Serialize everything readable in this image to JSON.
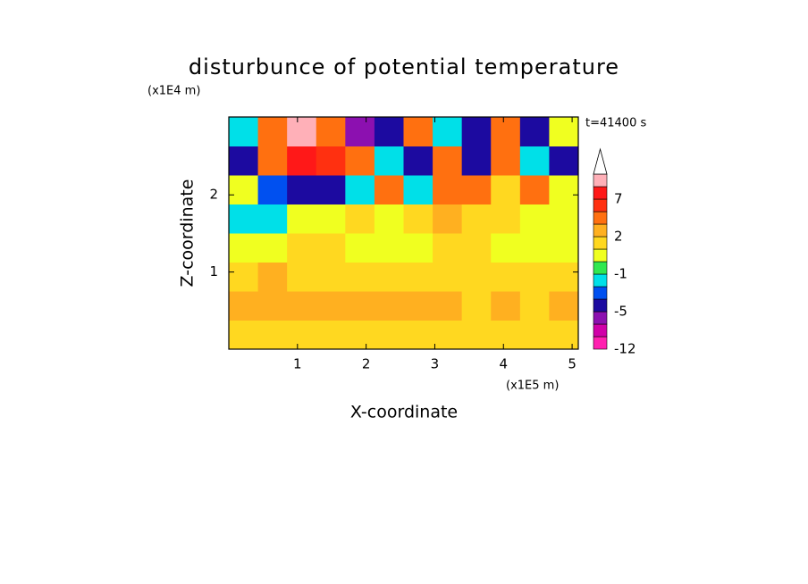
{
  "chart_data": {
    "type": "contour",
    "title": "disturbunce of potential temperature",
    "time_label": "t=41400 s",
    "x_label": "X-coordinate",
    "y_label": "Z-coordinate",
    "x_unit": "(x1E5 m)",
    "y_unit": "(x1E4 m)",
    "xlim": [
      0,
      5.09
    ],
    "ylim": [
      0,
      3.01
    ],
    "xticks": [
      1,
      2,
      3,
      4,
      5
    ],
    "yticks": [
      1,
      2
    ],
    "levels": [
      -12,
      -9,
      -7,
      -5,
      -3,
      -2,
      -1,
      0,
      1,
      2,
      3,
      5,
      7,
      9,
      11
    ],
    "colors": [
      "#ff20b0",
      "#d000a8",
      "#8c10b0",
      "#1c0aa0",
      "#0050f0",
      "#00e0e8",
      "#30e850",
      "#f0ff20",
      "#ffd820",
      "#ffb020",
      "#ff7010",
      "#ff3010",
      "#ff1818",
      "#ffb0b8"
    ],
    "colorbar_ticks": [
      -12,
      -5,
      -1,
      2,
      7
    ],
    "z": [
      [
        1.5,
        1.5,
        1.5,
        1.5,
        1.5,
        1.5,
        1.5,
        1.5,
        1.5,
        1.5,
        1.5,
        1.5
      ],
      [
        2.5,
        2.5,
        2.5,
        2.5,
        2.5,
        2.5,
        2.5,
        2.5,
        1.5,
        2.5,
        1.5,
        2.5
      ],
      [
        1.5,
        2.5,
        1.5,
        1.5,
        1.5,
        1.5,
        1.5,
        1.5,
        1.5,
        1.5,
        1.5,
        1.5
      ],
      [
        0.5,
        0.5,
        1.5,
        1.5,
        0.5,
        0.5,
        0.5,
        1.5,
        1.5,
        0.5,
        0.5,
        0.5
      ],
      [
        -1.5,
        -1.5,
        0.5,
        0.5,
        1.5,
        0.5,
        1.5,
        2.5,
        1.5,
        1.5,
        0.5,
        0.5
      ],
      [
        0.5,
        -2.5,
        -4,
        -4,
        -1.5,
        4,
        -1.5,
        4,
        4,
        1.5,
        4,
        0.5
      ],
      [
        -4,
        4,
        8,
        6,
        4,
        -1.5,
        -4,
        4,
        -4,
        4,
        -1.5,
        -4
      ],
      [
        -1.5,
        4,
        10,
        4,
        -6,
        -4,
        4,
        -1.5,
        -4,
        4,
        -4,
        0.5
      ]
    ]
  }
}
